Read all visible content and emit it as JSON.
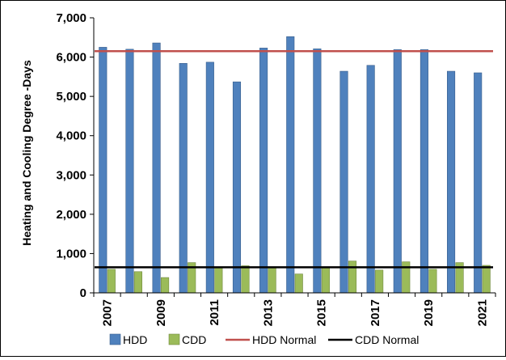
{
  "chart_data": {
    "type": "bar",
    "ylabel": "Heating and Cooling Degree -Days",
    "xlabel": "",
    "ylim": [
      0,
      7000
    ],
    "yticks": [
      0,
      1000,
      2000,
      3000,
      4000,
      5000,
      6000,
      7000
    ],
    "ytick_labels": [
      "0",
      "1,000",
      "2,000",
      "3,000",
      "4,000",
      "5,000",
      "6,000",
      "7,000"
    ],
    "categories": [
      "2007",
      "2008",
      "2009",
      "2010",
      "2011",
      "2012",
      "2013",
      "2014",
      "2015",
      "2016",
      "2017",
      "2018",
      "2019",
      "2020",
      "2021"
    ],
    "xtick_labels": [
      "2007",
      "2009",
      "2011",
      "2013",
      "2015",
      "2017",
      "2019",
      "2021"
    ],
    "series": [
      {
        "name": "HDD",
        "kind": "bar",
        "color": "#4f81bd",
        "values": [
          6250,
          6200,
          6360,
          5840,
          5870,
          5370,
          6230,
          6520,
          6210,
          5640,
          5790,
          6190,
          6190,
          5640,
          5600
        ]
      },
      {
        "name": "CDD",
        "kind": "bar",
        "color": "#9bbb59",
        "values": [
          600,
          540,
          390,
          770,
          660,
          690,
          640,
          480,
          660,
          810,
          580,
          790,
          600,
          770,
          700
        ]
      },
      {
        "name": "HDD Normal",
        "kind": "line",
        "color": "#c0504d",
        "value": 6150
      },
      {
        "name": "CDD Normal",
        "kind": "line",
        "color": "#000000",
        "value": 650
      }
    ],
    "grid": false,
    "legend_position": "bottom"
  }
}
